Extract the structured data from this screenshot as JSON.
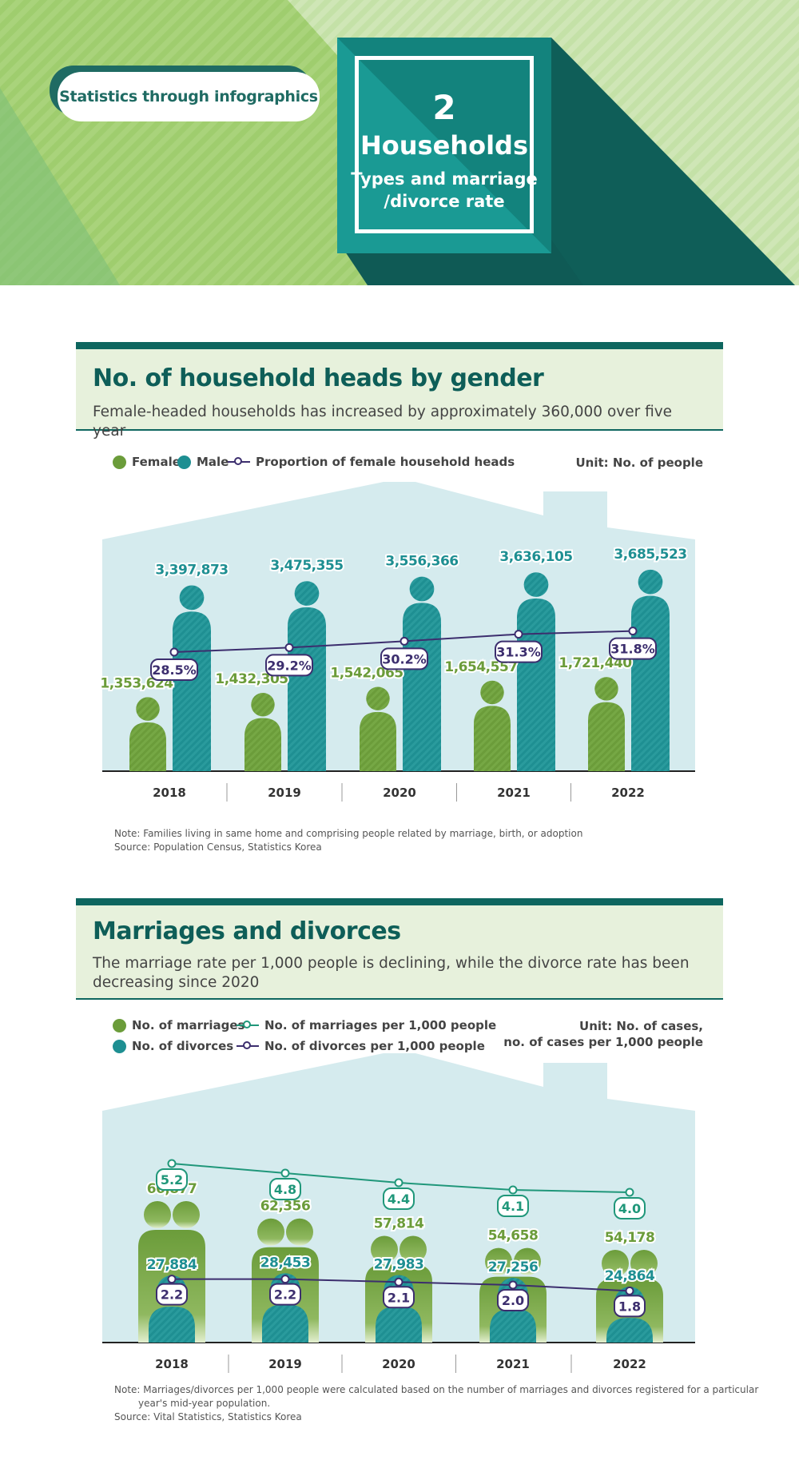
{
  "banner": {
    "tag": "Statistics through infographics",
    "number": "2",
    "title": "Households",
    "subtitle_line1": "Types and marriage",
    "subtitle_line2": "/divorce rate"
  },
  "section1": {
    "title": "No. of household heads by gender",
    "subtitle": "Female-headed households has increased by approximately 360,000 over five year",
    "legend": {
      "female": "Female",
      "male": "Male",
      "proportion": "Proportion of female household heads"
    },
    "unit": "Unit: No. of people",
    "note": "Note: Families living in same home and comprising people related by marriage, birth, or adoption",
    "source": "Source: Population Census, Statistics Korea"
  },
  "section2": {
    "title": "Marriages and divorces",
    "subtitle": "The marriage rate per 1,000 people is declining, while the divorce rate has been decreasing since 2020",
    "legend": {
      "marriages": "No. of marriages",
      "divorces": "No. of divorces",
      "marriage_rate": "No. of marriages per 1,000 people",
      "divorce_rate": "No. of divorces per 1,000 people"
    },
    "unit_line1": "Unit: No. of cases,",
    "unit_line2": "no. of cases per 1,000 people",
    "note_line1": "Note: Marriages/divorces per 1,000 people were calculated based on the number of marriages and divorces registered for a particular",
    "note_line2": "year's mid-year population.",
    "source": "Source: Vital Statistics, Statistics Korea"
  },
  "colors": {
    "banner_green": "#9ccc6b",
    "teal_dark": "#0e665f",
    "teal": "#1e8f92",
    "green": "#6b9c3a",
    "navy": "#3c2e6e",
    "line_green": "#20977a",
    "house_bg": "#d5ebee"
  },
  "chart_data": [
    {
      "type": "bar",
      "title": "No. of household heads by gender",
      "categories": [
        "2018",
        "2019",
        "2020",
        "2021",
        "2022"
      ],
      "series": [
        {
          "name": "Female",
          "values": [
            1353624,
            1432305,
            1542065,
            1654557,
            1721440
          ],
          "labels": [
            "1,353,624",
            "1,432,305",
            "1,542,065",
            "1,654,557",
            "1,721,440"
          ]
        },
        {
          "name": "Male",
          "values": [
            3397873,
            3475355,
            3556366,
            3636105,
            3685523
          ],
          "labels": [
            "3,397,873",
            "3,475,355",
            "3,556,366",
            "3,636,105",
            "3,685,523"
          ]
        },
        {
          "name": "Proportion of female household heads",
          "type": "line",
          "values": [
            28.5,
            29.2,
            30.2,
            31.3,
            31.8
          ],
          "labels": [
            "28.5%",
            "29.2%",
            "30.2%",
            "31.3%",
            "31.8%"
          ]
        }
      ]
    },
    {
      "type": "bar",
      "title": "Marriages and divorces",
      "categories": [
        "2018",
        "2019",
        "2020",
        "2021",
        "2022"
      ],
      "series": [
        {
          "name": "No. of marriages",
          "values": [
            66877,
            62356,
            57814,
            54658,
            54178
          ],
          "labels": [
            "66,877",
            "62,356",
            "57,814",
            "54,658",
            "54,178"
          ]
        },
        {
          "name": "No. of divorces",
          "values": [
            27884,
            28453,
            27983,
            27256,
            24864
          ],
          "labels": [
            "27,884",
            "28,453",
            "27,983",
            "27,256",
            "24,864"
          ]
        },
        {
          "name": "No. of marriages per 1,000 people",
          "type": "line",
          "values": [
            5.2,
            4.8,
            4.4,
            4.1,
            4.0
          ],
          "labels": [
            "5.2",
            "4.8",
            "4.4",
            "4.1",
            "4.0"
          ]
        },
        {
          "name": "No. of divorces per 1,000 people",
          "type": "line",
          "values": [
            2.2,
            2.2,
            2.1,
            2.0,
            1.8
          ],
          "labels": [
            "2.2",
            "2.2",
            "2.1",
            "2.0",
            "1.8"
          ]
        }
      ]
    }
  ]
}
